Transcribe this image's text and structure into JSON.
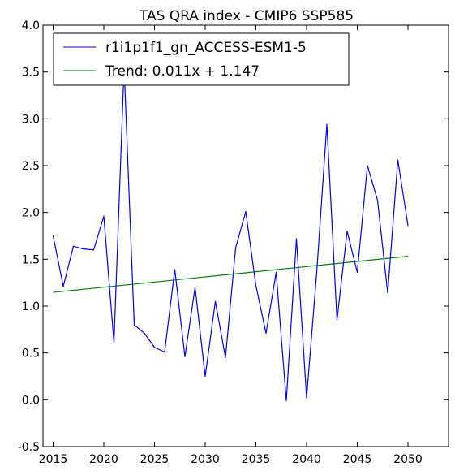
{
  "chart_data": {
    "type": "line",
    "title": "TAS QRA index - CMIP6 SSP585",
    "xlabel": "",
    "ylabel": "",
    "xlim": [
      2014,
      2054
    ],
    "ylim": [
      -0.5,
      4.0
    ],
    "xticks": [
      2015,
      2020,
      2025,
      2030,
      2035,
      2040,
      2045,
      2050
    ],
    "yticks": [
      -0.5,
      0.0,
      0.5,
      1.0,
      1.5,
      2.0,
      2.5,
      3.0,
      3.5,
      4.0
    ],
    "grid": false,
    "legend_position": "top-left",
    "x": [
      2015,
      2016,
      2017,
      2018,
      2019,
      2020,
      2021,
      2022,
      2023,
      2024,
      2025,
      2026,
      2027,
      2028,
      2029,
      2030,
      2031,
      2032,
      2033,
      2034,
      2035,
      2036,
      2037,
      2038,
      2039,
      2040,
      2041,
      2042,
      2043,
      2044,
      2045,
      2046,
      2047,
      2048,
      2049,
      2050
    ],
    "series": [
      {
        "name": "r1i1p1f1_gn_ACCESS-ESM1-5",
        "color": "#0000ff",
        "values": [
          1.75,
          1.21,
          1.64,
          1.61,
          1.6,
          1.96,
          0.61,
          3.55,
          0.8,
          0.71,
          0.56,
          0.51,
          1.39,
          0.46,
          1.2,
          0.25,
          1.05,
          0.45,
          1.62,
          2.01,
          1.22,
          0.71,
          1.36,
          -0.01,
          1.72,
          0.02,
          1.36,
          2.94,
          0.85,
          1.8,
          1.36,
          2.5,
          2.13,
          1.14,
          2.56,
          1.86
        ]
      },
      {
        "name": "Trend: 0.011x + 1.147",
        "color": "#008000",
        "trend": {
          "slope": 0.011,
          "intercept": 1.147
        }
      }
    ]
  }
}
